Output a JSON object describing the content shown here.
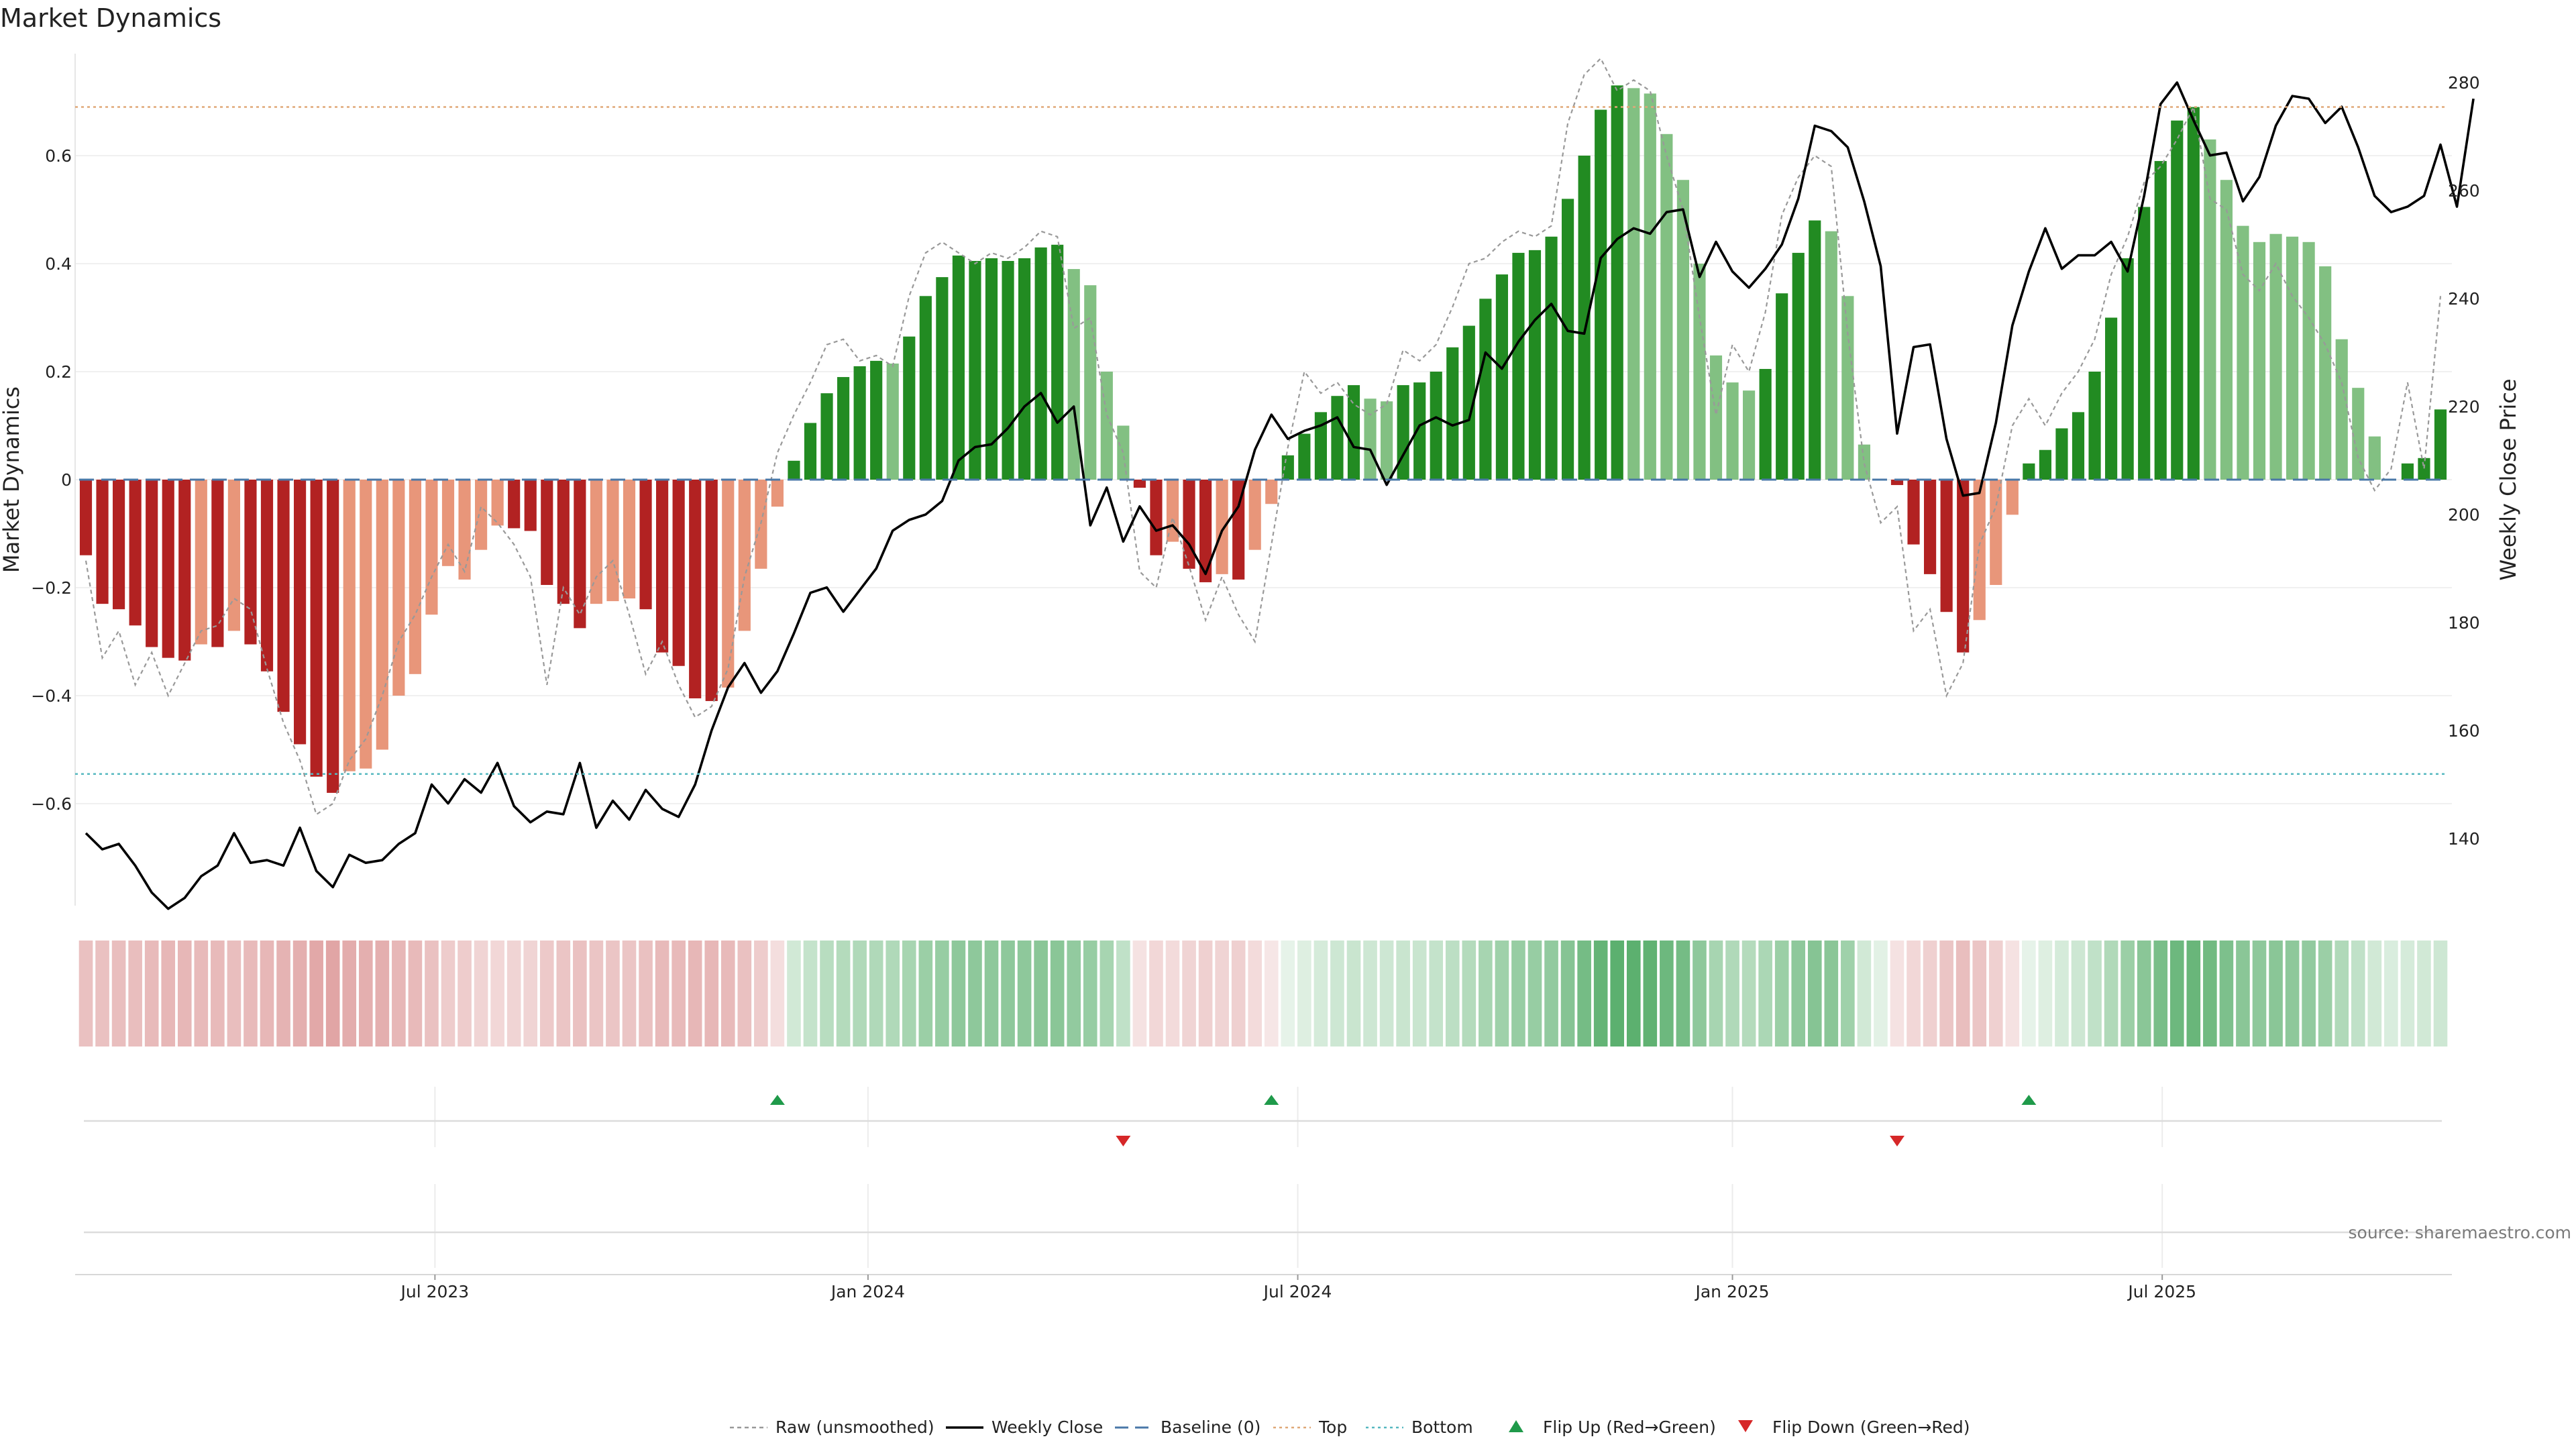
{
  "chart_data": {
    "type": "bar",
    "title": "Market Dynamics",
    "ylabel": "Market Dynamics",
    "y2label": "Weekly Close Price",
    "ylim": [
      -0.79,
      0.79
    ],
    "y2lim": [
      128.0,
      287.0
    ],
    "yticks": [
      "−0.6",
      "−0.4",
      "−0.2",
      "0",
      "0.2",
      "0.4",
      "0.6"
    ],
    "y2ticks": [
      "140",
      "160",
      "180",
      "200",
      "220",
      "240",
      "260",
      "280"
    ],
    "xticks": [
      "Jul 2023",
      "Jan 2024",
      "Jul 2024",
      "Jan 2025",
      "Jul 2025"
    ],
    "reference_lines": {
      "baseline": 0,
      "top": 0.69,
      "bottom": -0.545
    },
    "colors": {
      "strong_down": "#b22222",
      "weak_down": "#e8967a",
      "strong_up": "#228b22",
      "weak_up": "#82c082",
      "close": "#000000",
      "raw": "#999999",
      "baseline": "#4a78a8",
      "top": "#e0a878",
      "bottom": "#56b8c0",
      "flip_up": "#1f9a4a",
      "flip_down": "#d62728"
    },
    "bars": [
      -0.14,
      -0.23,
      -0.24,
      -0.27,
      -0.31,
      -0.33,
      -0.335,
      -0.305,
      -0.31,
      -0.28,
      -0.305,
      -0.355,
      -0.43,
      -0.49,
      -0.55,
      -0.58,
      -0.54,
      -0.535,
      -0.5,
      -0.4,
      -0.36,
      -0.25,
      -0.16,
      -0.185,
      -0.13,
      -0.085,
      -0.09,
      -0.095,
      -0.195,
      -0.23,
      -0.275,
      -0.23,
      -0.225,
      -0.22,
      -0.24,
      -0.32,
      -0.345,
      -0.405,
      -0.41,
      -0.385,
      -0.28,
      -0.165,
      -0.05,
      0.035,
      0.105,
      0.16,
      0.19,
      0.21,
      0.22,
      0.215,
      0.265,
      0.34,
      0.375,
      0.415,
      0.405,
      0.41,
      0.405,
      0.41,
      0.43,
      0.435,
      0.39,
      0.36,
      0.2,
      0.1,
      -0.015,
      -0.14,
      -0.115,
      -0.165,
      -0.19,
      -0.175,
      -0.185,
      -0.13,
      -0.045,
      0.045,
      0.085,
      0.125,
      0.155,
      0.175,
      0.15,
      0.145,
      0.175,
      0.18,
      0.2,
      0.245,
      0.285,
      0.335,
      0.38,
      0.42,
      0.425,
      0.45,
      0.52,
      0.6,
      0.685,
      0.73,
      0.725,
      0.715,
      0.64,
      0.555,
      0.4,
      0.23,
      0.18,
      0.165,
      0.205,
      0.345,
      0.42,
      0.48,
      0.46,
      0.34,
      0.065,
      0.0,
      -0.01,
      -0.12,
      -0.175,
      -0.245,
      -0.32,
      -0.26,
      -0.195,
      -0.065,
      0.03,
      0.055,
      0.095,
      0.125,
      0.2,
      0.3,
      0.41,
      0.505,
      0.59,
      0.665,
      0.69,
      0.63,
      0.555,
      0.47,
      0.44,
      0.455,
      0.45,
      0.44,
      0.395,
      0.26,
      0.17,
      0.08,
      0.0,
      0.03,
      0.04,
      0.13
    ],
    "bar_strength": [
      "strong",
      "strong",
      "strong",
      "strong",
      "strong",
      "strong",
      "strong",
      "weak",
      "strong",
      "weak",
      "strong",
      "strong",
      "strong",
      "strong",
      "strong",
      "strong",
      "weak",
      "weak",
      "weak",
      "weak",
      "weak",
      "weak",
      "weak",
      "weak",
      "weak",
      "weak",
      "strong",
      "strong",
      "strong",
      "strong",
      "strong",
      "weak",
      "weak",
      "weak",
      "strong",
      "strong",
      "strong",
      "strong",
      "strong",
      "weak",
      "weak",
      "weak",
      "weak",
      "strong",
      "strong",
      "strong",
      "strong",
      "strong",
      "strong",
      "weak",
      "strong",
      "strong",
      "strong",
      "strong",
      "strong",
      "strong",
      "strong",
      "strong",
      "strong",
      "strong",
      "weak",
      "weak",
      "weak",
      "weak",
      "strong",
      "strong",
      "weak",
      "strong",
      "strong",
      "weak",
      "strong",
      "weak",
      "weak",
      "strong",
      "strong",
      "strong",
      "strong",
      "strong",
      "weak",
      "weak",
      "strong",
      "strong",
      "strong",
      "strong",
      "strong",
      "strong",
      "strong",
      "strong",
      "strong",
      "strong",
      "strong",
      "strong",
      "strong",
      "strong",
      "weak",
      "weak",
      "weak",
      "weak",
      "weak",
      "weak",
      "weak",
      "weak",
      "strong",
      "strong",
      "strong",
      "strong",
      "weak",
      "weak",
      "weak",
      "weak",
      "strong",
      "strong",
      "strong",
      "strong",
      "strong",
      "weak",
      "weak",
      "weak",
      "strong",
      "strong",
      "strong",
      "strong",
      "strong",
      "strong",
      "strong",
      "strong",
      "strong",
      "strong",
      "strong",
      "weak",
      "weak",
      "weak",
      "weak",
      "weak",
      "weak",
      "weak",
      "weak",
      "weak",
      "weak",
      "weak",
      "strong",
      "strong",
      "strong",
      "strong"
    ],
    "close": [
      141.0,
      138.0,
      139.0,
      135.0,
      130.0,
      127.0,
      129.0,
      133.0,
      135.0,
      141.0,
      135.5,
      136.0,
      135.0,
      142.0,
      134.0,
      131.0,
      137.0,
      135.5,
      136.0,
      139.0,
      141.0,
      150.0,
      146.5,
      151.0,
      148.5,
      154.0,
      146.0,
      143.0,
      145.0,
      144.5,
      154.0,
      142.0,
      147.0,
      143.5,
      149.0,
      145.5,
      144.0,
      150.0,
      160.0,
      168.0,
      172.5,
      167.0,
      171.0,
      178.0,
      185.5,
      186.5,
      182.0,
      186.0,
      190.0,
      197.0,
      199.0,
      200.0,
      202.5,
      210.0,
      212.5,
      213.0,
      216.0,
      220.0,
      222.5,
      217.0,
      220.0,
      198.0,
      205.0,
      195.0,
      201.5,
      197.0,
      198.0,
      194.5,
      189.0,
      197.0,
      201.5,
      212.0,
      218.5,
      214.0,
      215.5,
      216.5,
      218.0,
      212.5,
      212.0,
      205.5,
      211.0,
      216.5,
      218.0,
      216.5,
      217.5,
      230.0,
      227.0,
      232.0,
      236.0,
      239.0,
      234.0,
      233.5,
      247.5,
      251.0,
      253.0,
      252.0,
      256.0,
      256.5,
      244.0,
      250.5,
      245.0,
      242.0,
      245.5,
      250.0,
      258.5,
      272.0,
      271.0,
      268.0,
      258.0,
      246.0,
      215.0,
      231.0,
      231.5,
      214.0,
      203.5,
      204.0,
      217.0,
      235.0,
      245.0,
      253.0,
      245.5,
      248.0,
      248.0,
      250.5,
      245.0,
      259.0,
      276.0,
      280.0,
      273.0,
      266.5,
      267.0,
      258.0,
      262.5,
      272.0,
      277.5,
      277.0,
      272.5,
      275.5,
      268.0,
      259.0,
      256.0,
      257.0,
      259.0,
      268.5,
      257.0,
      277.0
    ],
    "raw": [
      -0.15,
      -0.33,
      -0.28,
      -0.38,
      -0.32,
      -0.4,
      -0.34,
      -0.28,
      -0.27,
      -0.22,
      -0.24,
      -0.35,
      -0.45,
      -0.52,
      -0.62,
      -0.6,
      -0.52,
      -0.48,
      -0.4,
      -0.3,
      -0.25,
      -0.18,
      -0.12,
      -0.17,
      -0.05,
      -0.08,
      -0.12,
      -0.18,
      -0.38,
      -0.2,
      -0.25,
      -0.18,
      -0.15,
      -0.25,
      -0.36,
      -0.3,
      -0.38,
      -0.44,
      -0.42,
      -0.35,
      -0.18,
      -0.08,
      0.05,
      0.12,
      0.18,
      0.25,
      0.26,
      0.22,
      0.23,
      0.21,
      0.34,
      0.42,
      0.44,
      0.42,
      0.4,
      0.42,
      0.41,
      0.43,
      0.46,
      0.45,
      0.28,
      0.3,
      0.12,
      0.05,
      -0.17,
      -0.2,
      -0.07,
      -0.16,
      -0.26,
      -0.18,
      -0.25,
      -0.3,
      -0.12,
      0.06,
      0.2,
      0.16,
      0.18,
      0.14,
      0.12,
      0.14,
      0.24,
      0.22,
      0.25,
      0.32,
      0.4,
      0.41,
      0.44,
      0.46,
      0.45,
      0.47,
      0.66,
      0.75,
      0.78,
      0.72,
      0.74,
      0.72,
      0.6,
      0.5,
      0.3,
      0.12,
      0.25,
      0.2,
      0.31,
      0.49,
      0.56,
      0.6,
      0.58,
      0.27,
      0.03,
      -0.08,
      -0.05,
      -0.28,
      -0.24,
      -0.4,
      -0.34,
      -0.12,
      -0.05,
      0.1,
      0.15,
      0.1,
      0.16,
      0.2,
      0.26,
      0.38,
      0.45,
      0.55,
      0.58,
      0.63,
      0.69,
      0.52,
      0.5,
      0.38,
      0.35,
      0.4,
      0.34,
      0.3,
      0.25,
      0.18,
      0.04,
      -0.02,
      0.02,
      0.18,
      0.02,
      0.34
    ],
    "regime_strength": [
      0.34,
      0.34,
      0.36,
      0.36,
      0.38,
      0.4,
      0.4,
      0.38,
      0.38,
      0.36,
      0.38,
      0.4,
      0.42,
      0.44,
      0.48,
      0.5,
      0.46,
      0.44,
      0.44,
      0.4,
      0.38,
      0.34,
      0.28,
      0.28,
      0.24,
      0.22,
      0.24,
      0.24,
      0.3,
      0.32,
      0.34,
      0.32,
      0.32,
      0.32,
      0.34,
      0.38,
      0.38,
      0.4,
      0.4,
      0.38,
      0.34,
      0.28,
      0.18,
      0.22,
      0.28,
      0.34,
      0.36,
      0.38,
      0.38,
      0.38,
      0.42,
      0.48,
      0.5,
      0.54,
      0.54,
      0.54,
      0.54,
      0.54,
      0.56,
      0.56,
      0.52,
      0.5,
      0.42,
      0.3,
      0.16,
      0.22,
      0.2,
      0.24,
      0.26,
      0.24,
      0.26,
      0.2,
      0.14,
      0.12,
      0.16,
      0.2,
      0.24,
      0.26,
      0.24,
      0.24,
      0.26,
      0.26,
      0.28,
      0.32,
      0.36,
      0.42,
      0.46,
      0.5,
      0.5,
      0.52,
      0.58,
      0.66,
      0.74,
      0.78,
      0.78,
      0.76,
      0.7,
      0.66,
      0.54,
      0.42,
      0.38,
      0.36,
      0.4,
      0.48,
      0.54,
      0.58,
      0.56,
      0.46,
      0.22,
      0.14,
      0.16,
      0.22,
      0.26,
      0.32,
      0.36,
      0.32,
      0.26,
      0.16,
      0.12,
      0.16,
      0.2,
      0.24,
      0.3,
      0.38,
      0.48,
      0.56,
      0.64,
      0.7,
      0.72,
      0.68,
      0.62,
      0.56,
      0.54,
      0.56,
      0.54,
      0.52,
      0.48,
      0.38,
      0.3,
      0.22,
      0.18,
      0.2,
      0.22,
      0.24
    ],
    "flips": [
      {
        "type": "up",
        "index": 42
      },
      {
        "type": "down",
        "index": 63
      },
      {
        "type": "up",
        "index": 72
      },
      {
        "type": "down",
        "index": 110
      },
      {
        "type": "up",
        "index": 118
      }
    ],
    "legend_position": "bottom-center",
    "legend": [
      {
        "key": "raw",
        "label": "Raw (unsmoothed)"
      },
      {
        "key": "close",
        "label": "Weekly Close"
      },
      {
        "key": "baseline",
        "label": "Baseline (0)"
      },
      {
        "key": "top",
        "label": "Top"
      },
      {
        "key": "bottom",
        "label": "Bottom"
      },
      {
        "key": "flip_up",
        "label": "Flip Up (Red→Green)"
      },
      {
        "key": "flip_down",
        "label": "Flip Down (Green→Red)"
      }
    ],
    "source": "source: sharemaestro.com",
    "grid": true
  }
}
